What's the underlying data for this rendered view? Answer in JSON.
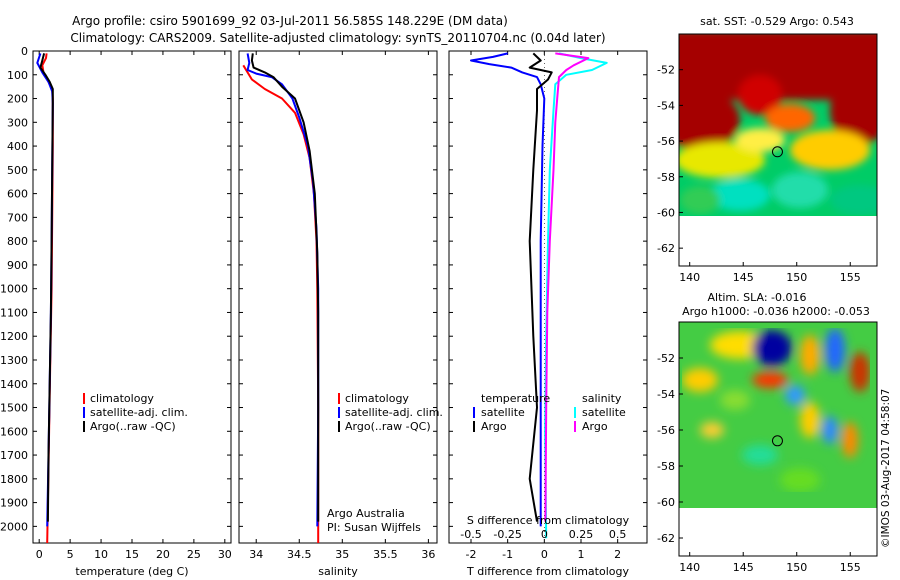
{
  "header": {
    "line1": "Argo profile: csiro 5901699_92 03-Jul-2011 56.585S 148.229E (DM data)",
    "line2": "Climatology: CARS2009. Satellite-adjusted climatology: synTS_20110704.nc (0.04d later)"
  },
  "depth_ticks": [
    "0",
    "100",
    "200",
    "300",
    "400",
    "500",
    "600",
    "700",
    "800",
    "900",
    "1000",
    "1100",
    "1200",
    "1300",
    "1400",
    "1500",
    "1600",
    "1700",
    "1800",
    "1900",
    "2000"
  ],
  "colors": {
    "climatology": "#ff0000",
    "satellite": "#0000ff",
    "argo": "#000000",
    "sat_salinity": "#00ffff",
    "argo_salinity": "#ff00ff"
  },
  "chart_data": [
    {
      "type": "line",
      "xlabel": "temperature (deg C)",
      "xlim": [
        -1,
        31
      ],
      "ylim": [
        2070,
        0
      ],
      "xticks": [
        "0",
        "5",
        "10",
        "15",
        "20",
        "25",
        "30"
      ],
      "legend": {
        "placement": "lower-middle",
        "items": [
          "climatology",
          "satellite-adj. clim.",
          "Argo(..raw -QC)"
        ]
      },
      "series": [
        {
          "name": "climatology",
          "color": "#ff0000",
          "points": [
            [
              1.2,
              10
            ],
            [
              1.1,
              30
            ],
            [
              0.5,
              60
            ],
            [
              0.7,
              90
            ],
            [
              1.5,
              130
            ],
            [
              2.1,
              160
            ],
            [
              2.2,
              200
            ],
            [
              2.2,
              400
            ],
            [
              2.1,
              700
            ],
            [
              2.0,
              1000
            ],
            [
              1.8,
              1300
            ],
            [
              1.6,
              1600
            ],
            [
              1.4,
              1900
            ],
            [
              1.3,
              2070
            ]
          ]
        },
        {
          "name": "satellite-adj. clim.",
          "color": "#0000ff",
          "points": [
            [
              0.2,
              10
            ],
            [
              -0.3,
              50
            ],
            [
              0.5,
              90
            ],
            [
              1.5,
              130
            ],
            [
              2.1,
              170
            ],
            [
              2.2,
              220
            ],
            [
              2.1,
              500
            ],
            [
              2.0,
              800
            ],
            [
              1.9,
              1100
            ],
            [
              1.7,
              1400
            ],
            [
              1.5,
              1700
            ],
            [
              1.3,
              2000
            ]
          ]
        },
        {
          "name": "Argo(..raw -QC)",
          "color": "#000000",
          "points": [
            [
              0.8,
              10
            ],
            [
              0.5,
              40
            ],
            [
              0.2,
              70
            ],
            [
              1.0,
              100
            ],
            [
              1.7,
              130
            ],
            [
              2.2,
              160
            ],
            [
              2.2,
              220
            ],
            [
              2.1,
              500
            ],
            [
              2.0,
              800
            ],
            [
              1.9,
              1100
            ],
            [
              1.7,
              1400
            ],
            [
              1.5,
              1700
            ],
            [
              1.4,
              1980
            ]
          ]
        }
      ]
    },
    {
      "type": "line",
      "xlabel": "salinity",
      "xlim": [
        33.8,
        36.1
      ],
      "ylim": [
        2070,
        0
      ],
      "xticks": [
        "34",
        "34.5",
        "35",
        "35.5",
        "36"
      ],
      "legend": {
        "placement": "lower-right",
        "items": [
          "climatology",
          "satellite-adj. clim.",
          "Argo(..raw -QC)"
        ]
      },
      "annotation": {
        "line1": "Argo Australia",
        "line2": "PI: Susan Wijffels"
      },
      "series": [
        {
          "name": "climatology",
          "color": "#ff0000",
          "points": [
            [
              33.85,
              60
            ],
            [
              33.95,
              120
            ],
            [
              34.1,
              160
            ],
            [
              34.3,
              200
            ],
            [
              34.45,
              260
            ],
            [
              34.55,
              350
            ],
            [
              34.62,
              450
            ],
            [
              34.67,
              600
            ],
            [
              34.7,
              800
            ],
            [
              34.71,
              1000
            ],
            [
              34.72,
              1500
            ],
            [
              34.72,
              2070
            ]
          ]
        },
        {
          "name": "satellite-adj. clim.",
          "color": "#0000ff",
          "points": [
            [
              33.9,
              10
            ],
            [
              33.92,
              50
            ],
            [
              33.9,
              80
            ],
            [
              34.0,
              95
            ],
            [
              34.18,
              110
            ],
            [
              34.3,
              140
            ],
            [
              34.42,
              200
            ],
            [
              34.5,
              280
            ],
            [
              34.6,
              400
            ],
            [
              34.66,
              550
            ],
            [
              34.7,
              750
            ],
            [
              34.72,
              1000
            ],
            [
              34.72,
              1500
            ],
            [
              34.71,
              2000
            ]
          ]
        },
        {
          "name": "Argo(..raw -QC)",
          "color": "#000000",
          "points": [
            [
              33.96,
              10
            ],
            [
              33.95,
              40
            ],
            [
              33.97,
              70
            ],
            [
              34.1,
              90
            ],
            [
              34.2,
              110
            ],
            [
              34.3,
              150
            ],
            [
              34.45,
              200
            ],
            [
              34.55,
              300
            ],
            [
              34.62,
              420
            ],
            [
              34.68,
              600
            ],
            [
              34.71,
              850
            ],
            [
              34.72,
              1100
            ],
            [
              34.72,
              1500
            ],
            [
              34.72,
              1980
            ]
          ]
        }
      ]
    },
    {
      "type": "line",
      "xlabel": "T difference from climatology",
      "xlabel_top": "S difference from climatology",
      "xlim": [
        -2.6,
        2.8
      ],
      "ylim": [
        2070,
        0
      ],
      "xticks": [
        "-2",
        "-1",
        "0",
        "1",
        "2"
      ],
      "xticks_top": [
        "-0.5",
        "-0.25",
        "0",
        "0.25",
        "0.5"
      ],
      "legend": {
        "placement": "lower",
        "items": [
          "temperature",
          "satellite",
          "Argo",
          "salinity",
          "satellite",
          "Argo"
        ]
      },
      "series": [
        {
          "name": "temperature satellite",
          "color": "#0000ff",
          "points": [
            [
              -1.0,
              10
            ],
            [
              -1.4,
              25
            ],
            [
              -2.0,
              40
            ],
            [
              -1.5,
              55
            ],
            [
              -0.9,
              70
            ],
            [
              -0.6,
              90
            ],
            [
              -0.2,
              110
            ],
            [
              -0.1,
              140
            ],
            [
              0.0,
              200
            ],
            [
              -0.05,
              400
            ],
            [
              -0.1,
              800
            ],
            [
              -0.1,
              1300
            ],
            [
              -0.1,
              2000
            ]
          ]
        },
        {
          "name": "temperature Argo",
          "color": "#000000",
          "points": [
            [
              -0.3,
              10
            ],
            [
              -0.1,
              40
            ],
            [
              -0.4,
              70
            ],
            [
              0.2,
              90
            ],
            [
              0.1,
              120
            ],
            [
              -0.2,
              160
            ],
            [
              -0.2,
              250
            ],
            [
              -0.3,
              500
            ],
            [
              -0.4,
              800
            ],
            [
              -0.3,
              1200
            ],
            [
              -0.2,
              1500
            ],
            [
              -0.4,
              1800
            ],
            [
              -0.2,
              1980
            ]
          ]
        },
        {
          "name": "salinity satellite",
          "color": "#00ffff",
          "points": [
            [
              0.4,
              10
            ],
            [
              1.0,
              30
            ],
            [
              1.7,
              50
            ],
            [
              1.3,
              80
            ],
            [
              0.6,
              100
            ],
            [
              0.3,
              140
            ],
            [
              0.25,
              250
            ],
            [
              0.15,
              500
            ],
            [
              0.1,
              800
            ],
            [
              0.05,
              1200
            ],
            [
              0.02,
              1600
            ],
            [
              0.05,
              2050
            ]
          ]
        },
        {
          "name": "salinity Argo",
          "color": "#ff00ff",
          "points": [
            [
              0.3,
              10
            ],
            [
              1.2,
              30
            ],
            [
              0.8,
              60
            ],
            [
              0.6,
              80
            ],
            [
              0.4,
              110
            ],
            [
              0.35,
              200
            ],
            [
              0.3,
              300
            ],
            [
              0.25,
              500
            ],
            [
              0.15,
              800
            ],
            [
              0.08,
              1100
            ],
            [
              0.05,
              1500
            ],
            [
              0.03,
              1980
            ]
          ]
        }
      ]
    },
    {
      "type": "heatmap",
      "title": "sat. SST: -0.529 Argo: 0.543",
      "xlim": [
        139,
        157.5
      ],
      "ylim": [
        -63,
        -50
      ],
      "xticks": [
        "140",
        "145",
        "150",
        "155"
      ],
      "yticks": [
        "-52",
        "-54",
        "-56",
        "-58",
        "-60",
        "-62"
      ],
      "marker": {
        "lon": 148.2,
        "lat": -56.6
      }
    },
    {
      "type": "heatmap",
      "title_line1": "Altim. SLA: -0.016",
      "title_line2": "Argo h1000: -0.036 h2000: -0.053",
      "xlim": [
        139,
        157.5
      ],
      "ylim": [
        -63,
        -50
      ],
      "xticks": [
        "140",
        "145",
        "150",
        "155"
      ],
      "yticks": [
        "-52",
        "-54",
        "-56",
        "-58",
        "-60",
        "-62"
      ],
      "marker": {
        "lon": 148.2,
        "lat": -56.6
      }
    }
  ],
  "credit": "©IMOS 03-Aug-2017 04:58:07"
}
